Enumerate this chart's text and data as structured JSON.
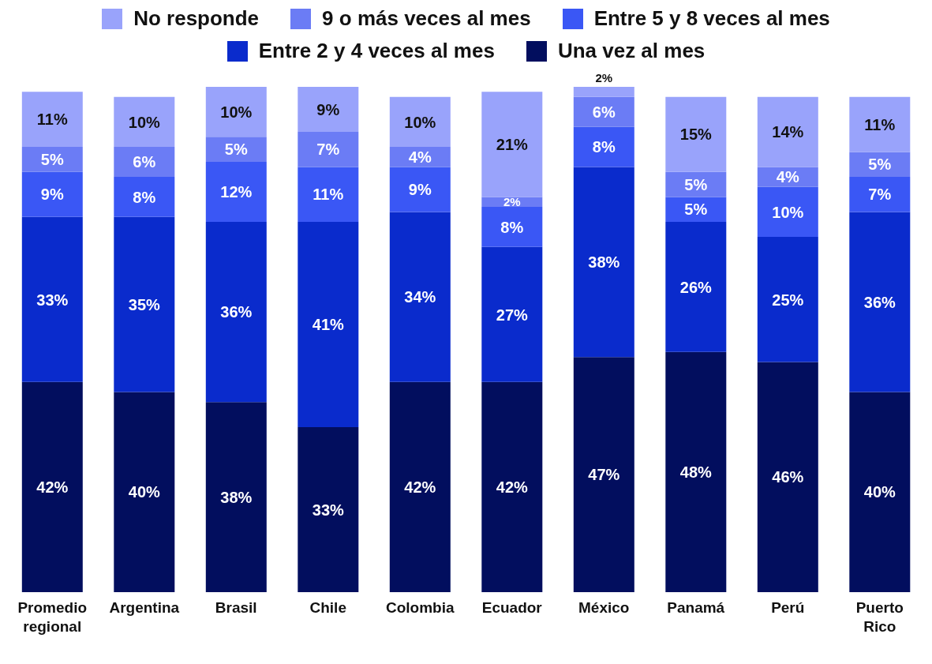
{
  "chart_data": {
    "type": "bar",
    "stacked": true,
    "legend": "top",
    "categories": [
      "Promedio regional",
      "Argentina",
      "Brasil",
      "Chile",
      "Colombia",
      "Ecuador",
      "México",
      "Panamá",
      "Perú",
      "Puerto Rico"
    ],
    "series": [
      {
        "name": "Una vez al mes",
        "color": "#020e5e",
        "values": [
          42,
          40,
          38,
          33,
          42,
          42,
          47,
          48,
          46,
          40
        ],
        "value_labels": [
          "42%",
          "40%",
          "38%",
          "33%",
          "42%",
          "42%",
          "47%",
          "48%",
          "46%",
          "40%"
        ]
      },
      {
        "name": "Entre 2 y 4 veces al mes",
        "color": "#0a2bcc",
        "values": [
          33,
          35,
          36,
          41,
          34,
          27,
          38,
          26,
          25,
          36
        ],
        "value_labels": [
          "33%",
          "35%",
          "36%",
          "41%",
          "34%",
          "27%",
          "38%",
          "26%",
          "25%",
          "36%"
        ]
      },
      {
        "name": "Entre 5 y 8 veces al mes",
        "color": "#3a57f5",
        "values": [
          9,
          8,
          12,
          11,
          9,
          8,
          8,
          5,
          10,
          7
        ],
        "value_labels": [
          "9%",
          "8%",
          "12%",
          "11%",
          "9%",
          "8%",
          "8%",
          "5%",
          "10%",
          "7%"
        ]
      },
      {
        "name": "9 o más veces al mes",
        "color": "#6b7cf5",
        "values": [
          5,
          6,
          5,
          7,
          4,
          2,
          6,
          5,
          4,
          5
        ],
        "value_labels": [
          "5%",
          "6%",
          "5%",
          "7%",
          "4%",
          "2%",
          "6%",
          "5%",
          "4%",
          "5%"
        ]
      },
      {
        "name": "No responde",
        "color": "#99a3fb",
        "values": [
          11,
          10,
          10,
          9,
          10,
          21,
          2,
          15,
          14,
          11
        ],
        "value_labels": [
          "11%",
          "10%",
          "10%",
          "9%",
          "10%",
          "21%",
          "2%",
          "15%",
          "14%",
          "11%"
        ]
      }
    ]
  }
}
